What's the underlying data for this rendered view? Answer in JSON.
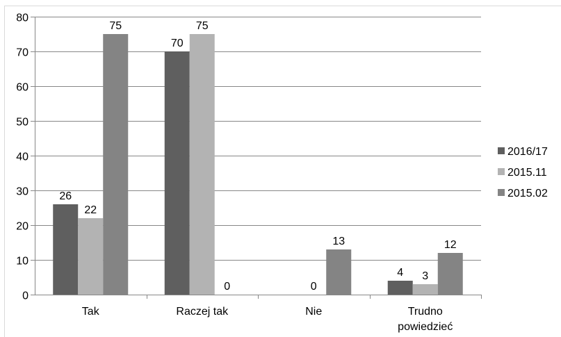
{
  "chart_data": {
    "type": "bar",
    "categories": [
      "Tak",
      "Raczej tak",
      "Nie",
      [
        "Trudno",
        "powiedzieć"
      ]
    ],
    "series": [
      {
        "name": "2016/17",
        "values": [
          26,
          70,
          0,
          4
        ],
        "color": "#5f5f5f"
      },
      {
        "name": "2015.11",
        "values": [
          22,
          75,
          0,
          3
        ],
        "color": "#b3b3b3"
      },
      {
        "name": "2015.02",
        "values": [
          75,
          0,
          13,
          12
        ],
        "color": "#848484"
      }
    ],
    "data_labels": [
      [
        "26",
        "70",
        "",
        "4"
      ],
      [
        "22",
        "75",
        "0",
        "3"
      ],
      [
        "75",
        "0",
        "13",
        "12"
      ]
    ],
    "ylim": [
      0,
      80
    ],
    "yticks": [
      "0",
      "10",
      "20",
      "30",
      "40",
      "50",
      "60",
      "70",
      "80"
    ],
    "grid": true,
    "legend": "right",
    "title": "",
    "xlabel": "",
    "ylabel": ""
  }
}
